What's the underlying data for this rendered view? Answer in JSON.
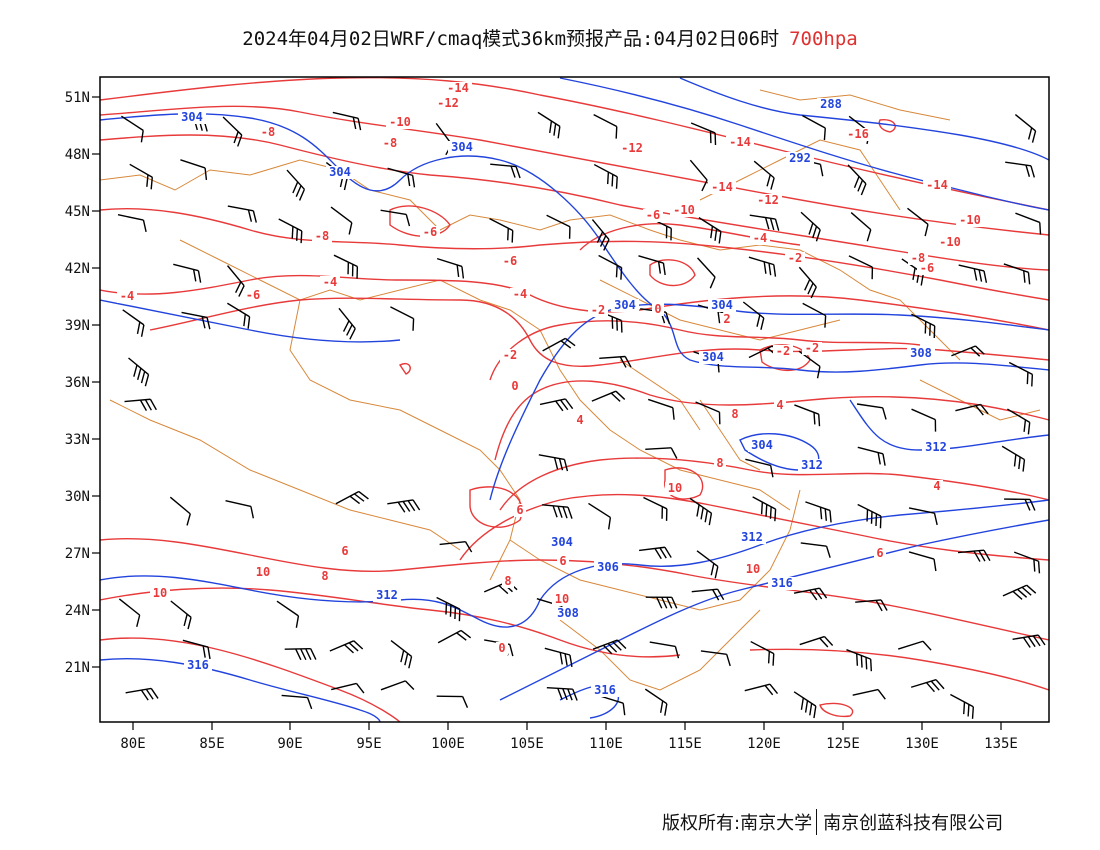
{
  "header": {
    "title": "2024年04月02日WRF/cmaq模式36km预报产品:04月02日06时",
    "level": "700hpa",
    "level_color": "#e03030"
  },
  "axes": {
    "lon_ticks": [
      "80E",
      "85E",
      "90E",
      "95E",
      "100E",
      "105E",
      "110E",
      "115E",
      "120E",
      "125E",
      "130E",
      "135E"
    ],
    "lat_ticks": [
      "51N",
      "48N",
      "45N",
      "42N",
      "39N",
      "36N",
      "33N",
      "30N",
      "27N",
      "24N",
      "21N"
    ]
  },
  "legend_colors": {
    "temperature_contours": "#e83a3a",
    "height_contours": "#2244dd",
    "boundaries": "#d8883a",
    "wind_barbs": "#000000"
  },
  "contour_labels": {
    "temperature": [
      "-14",
      "-12",
      "-10",
      "-8",
      "-8",
      "-6",
      "-8",
      "-4",
      "-4",
      "-6",
      "-6",
      "-2",
      "-2",
      "0",
      "-4",
      "-14",
      "-16",
      "-12",
      "-14",
      "-10",
      "-10",
      "-6",
      "-4",
      "-2",
      "-12",
      "-14",
      "-10",
      "-8",
      "-6",
      "-2",
      "-2",
      "2",
      "0",
      "4",
      "8",
      "4",
      "6",
      "8",
      "10",
      "6",
      "6",
      "8",
      "10",
      "10",
      "8",
      "10",
      "10",
      "4",
      "6",
      "0"
    ],
    "height": [
      "304",
      "304",
      "304",
      "288",
      "292",
      "304",
      "304",
      "304",
      "304",
      "308",
      "304",
      "312",
      "312",
      "306",
      "308",
      "312",
      "316",
      "316",
      "316",
      "312"
    ]
  },
  "footer": {
    "left": "版权所有:南京大学",
    "right": "南京创蓝科技有限公司"
  }
}
